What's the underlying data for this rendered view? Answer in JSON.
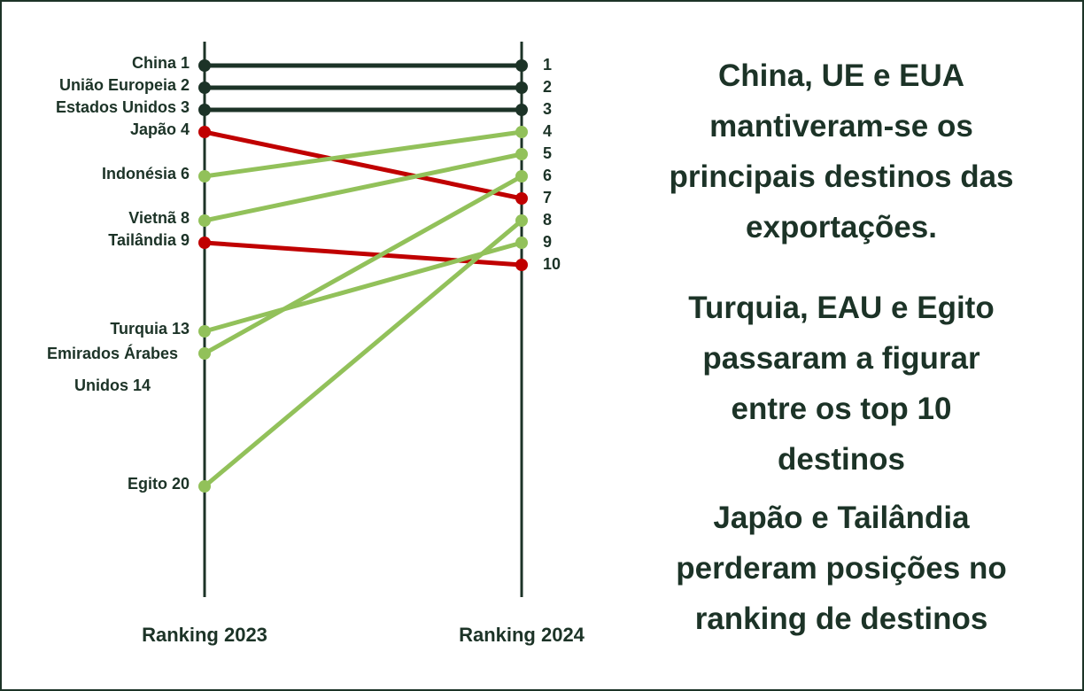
{
  "chart_data": {
    "type": "slope",
    "categories": [
      "Ranking 2023",
      "Ranking 2024"
    ],
    "ylim": [
      0,
      25
    ],
    "y_reversed": true,
    "series": [
      {
        "label": "China 1",
        "color": "#1c3327",
        "values": [
          1,
          1
        ]
      },
      {
        "label": "União Europeia 2",
        "color": "#1c3327",
        "values": [
          2,
          2
        ]
      },
      {
        "label": "Estados Unidos 3",
        "color": "#1c3327",
        "values": [
          3,
          3
        ]
      },
      {
        "label": "Japão 4",
        "color": "#c00000",
        "values": [
          4,
          7
        ]
      },
      {
        "label": "Indonésia 6",
        "color": "#92c15a",
        "values": [
          6,
          4
        ]
      },
      {
        "label": "Vietnã 8",
        "color": "#92c15a",
        "values": [
          8,
          5
        ]
      },
      {
        "label": "Tailândia 9",
        "color": "#c00000",
        "values": [
          9,
          10
        ]
      },
      {
        "label": "Turquia 13",
        "color": "#92c15a",
        "values": [
          13,
          9
        ]
      },
      {
        "label": "Emirados Árabes Unidos 14",
        "color": "#92c15a",
        "values": [
          14,
          6
        ]
      },
      {
        "label": "Egito 20",
        "color": "#92c15a",
        "values": [
          20,
          8
        ]
      }
    ],
    "annotations": [
      [
        "China, UE e EUA",
        "mantiveram-se os",
        "principais destinos das",
        "exportações."
      ],
      [
        "Turquia, EAU e Egito",
        "passaram a figurar",
        "entre os top 10",
        "destinos"
      ],
      [
        "Japão e Tailândia",
        "perderam posições no",
        "ranking de destinos"
      ]
    ]
  }
}
